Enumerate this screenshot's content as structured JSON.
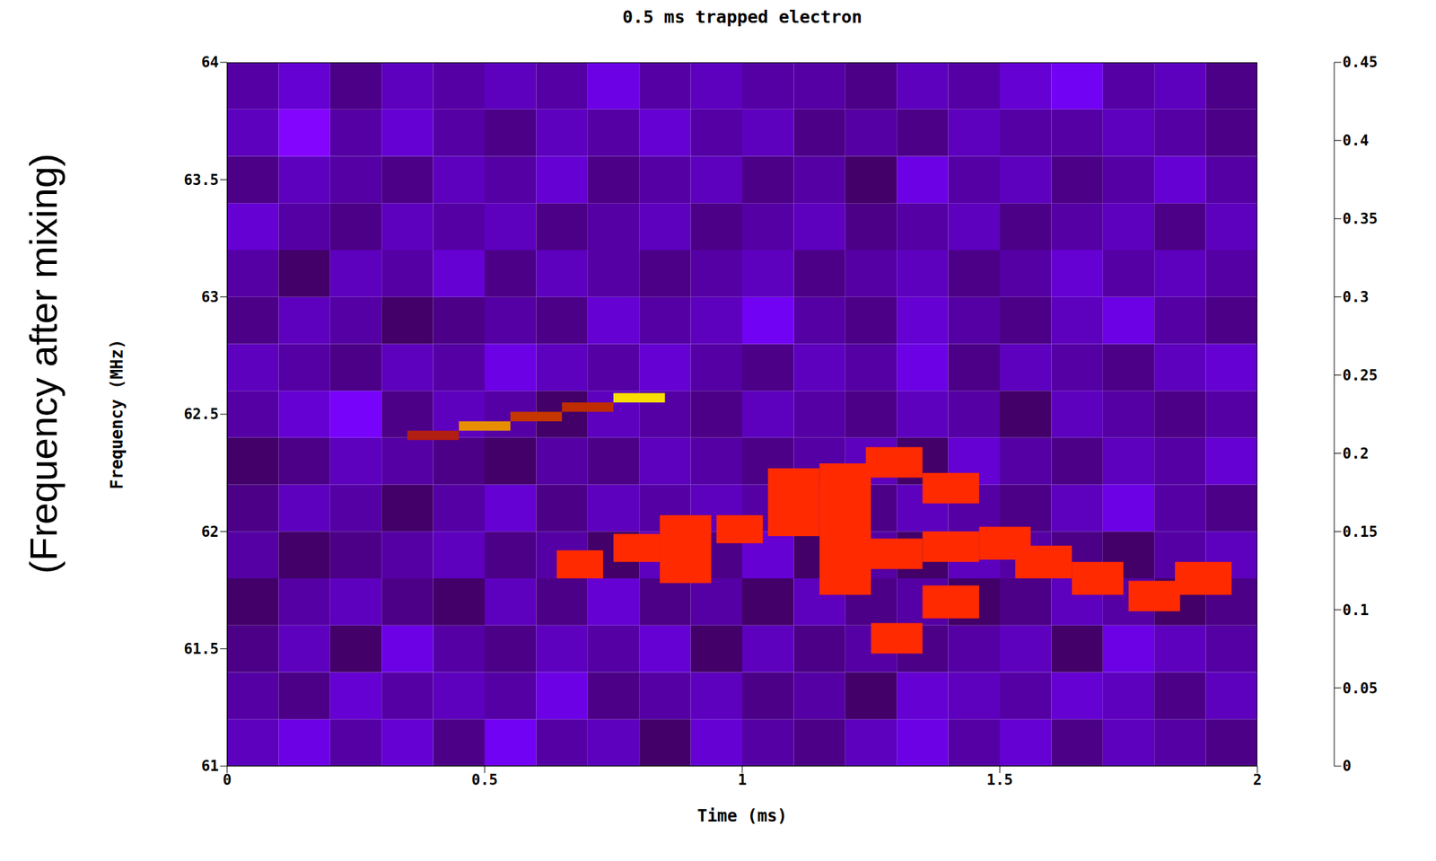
{
  "chart_data": {
    "type": "heatmap",
    "title": "0.5 ms trapped electron",
    "x_label": "Time (ms)",
    "y_label": "Frequency (MHz)",
    "annotation": "(Frequency after mixing)",
    "xlim": [
      0,
      2
    ],
    "ylim": [
      61,
      64
    ],
    "xticks": [
      0,
      0.5,
      1,
      1.5,
      2
    ],
    "yticks": [
      61,
      61.5,
      62,
      62.5,
      63,
      63.5,
      64
    ],
    "x_edges": [
      0,
      0.1,
      0.2,
      0.3,
      0.4,
      0.5,
      0.6,
      0.7,
      0.8,
      0.9,
      1.0,
      1.1,
      1.2,
      1.3,
      1.4,
      1.5,
      1.6,
      1.7,
      1.8,
      1.9,
      2.0
    ],
    "y_edges": [
      61,
      61.2,
      61.4,
      61.6,
      61.8,
      62,
      62.2,
      62.4,
      62.6,
      62.8,
      63,
      63.2,
      63.4,
      63.6,
      63.8,
      64
    ],
    "z": [
      [
        0.06,
        0.08,
        0.05,
        0.07,
        0.04,
        0.09,
        0.05,
        0.06,
        0.03,
        0.07,
        0.05,
        0.04,
        0.06,
        0.08,
        0.05,
        0.07,
        0.04,
        0.06,
        0.05,
        0.04
      ],
      [
        0.05,
        0.04,
        0.07,
        0.05,
        0.06,
        0.05,
        0.08,
        0.04,
        0.05,
        0.06,
        0.04,
        0.05,
        0.03,
        0.07,
        0.06,
        0.05,
        0.07,
        0.06,
        0.04,
        0.06
      ],
      [
        0.04,
        0.06,
        0.03,
        0.08,
        0.05,
        0.04,
        0.06,
        0.05,
        0.07,
        0.03,
        0.06,
        0.04,
        0.05,
        0.04,
        0.05,
        0.06,
        0.03,
        0.08,
        0.06,
        0.05
      ],
      [
        0.03,
        0.05,
        0.06,
        0.04,
        0.03,
        0.06,
        0.04,
        0.07,
        0.04,
        0.05,
        0.03,
        0.06,
        0.04,
        0.05,
        0.03,
        0.04,
        0.06,
        0.05,
        0.03,
        0.04
      ],
      [
        0.05,
        0.03,
        0.04,
        0.05,
        0.06,
        0.04,
        0.05,
        0.03,
        0.06,
        0.04,
        0.07,
        0.03,
        0.05,
        0.03,
        0.06,
        0.05,
        0.04,
        0.03,
        0.05,
        0.06
      ],
      [
        0.04,
        0.06,
        0.05,
        0.03,
        0.05,
        0.07,
        0.04,
        0.06,
        0.05,
        0.06,
        0.05,
        0.08,
        0.04,
        0.06,
        0.05,
        0.04,
        0.06,
        0.08,
        0.05,
        0.04
      ],
      [
        0.03,
        0.04,
        0.06,
        0.05,
        0.04,
        0.03,
        0.05,
        0.04,
        0.06,
        0.05,
        0.04,
        0.05,
        0.06,
        0.03,
        0.07,
        0.05,
        0.04,
        0.06,
        0.05,
        0.07
      ],
      [
        0.05,
        0.07,
        0.1,
        0.04,
        0.06,
        0.05,
        0.03,
        0.06,
        0.05,
        0.04,
        0.06,
        0.05,
        0.04,
        0.06,
        0.05,
        0.03,
        0.06,
        0.05,
        0.04,
        0.05
      ],
      [
        0.06,
        0.05,
        0.04,
        0.06,
        0.05,
        0.08,
        0.06,
        0.05,
        0.07,
        0.05,
        0.04,
        0.06,
        0.05,
        0.08,
        0.04,
        0.06,
        0.05,
        0.04,
        0.06,
        0.07
      ],
      [
        0.04,
        0.06,
        0.05,
        0.03,
        0.04,
        0.05,
        0.04,
        0.07,
        0.05,
        0.06,
        0.09,
        0.05,
        0.04,
        0.07,
        0.05,
        0.04,
        0.06,
        0.08,
        0.05,
        0.04
      ],
      [
        0.05,
        0.03,
        0.06,
        0.05,
        0.07,
        0.04,
        0.06,
        0.05,
        0.04,
        0.05,
        0.06,
        0.04,
        0.05,
        0.06,
        0.04,
        0.05,
        0.07,
        0.05,
        0.06,
        0.05
      ],
      [
        0.07,
        0.05,
        0.04,
        0.06,
        0.05,
        0.06,
        0.04,
        0.05,
        0.06,
        0.04,
        0.05,
        0.06,
        0.04,
        0.05,
        0.06,
        0.04,
        0.05,
        0.06,
        0.04,
        0.06
      ],
      [
        0.04,
        0.06,
        0.05,
        0.04,
        0.06,
        0.05,
        0.07,
        0.04,
        0.05,
        0.06,
        0.04,
        0.05,
        0.03,
        0.08,
        0.05,
        0.06,
        0.04,
        0.05,
        0.07,
        0.05
      ],
      [
        0.06,
        0.12,
        0.05,
        0.07,
        0.05,
        0.04,
        0.06,
        0.05,
        0.07,
        0.05,
        0.06,
        0.04,
        0.05,
        0.04,
        0.06,
        0.05,
        0.05,
        0.06,
        0.05,
        0.04
      ],
      [
        0.05,
        0.07,
        0.04,
        0.06,
        0.05,
        0.06,
        0.05,
        0.08,
        0.05,
        0.06,
        0.05,
        0.05,
        0.04,
        0.06,
        0.05,
        0.07,
        0.09,
        0.05,
        0.06,
        0.04
      ]
    ],
    "cells": [
      {
        "x": [
          0.35,
          0.45
        ],
        "y": [
          62.39,
          62.43
        ],
        "value": 0.22
      },
      {
        "x": [
          0.45,
          0.55
        ],
        "y": [
          62.43,
          62.47
        ],
        "value": 0.37
      },
      {
        "x": [
          0.55,
          0.65
        ],
        "y": [
          62.47,
          62.51
        ],
        "value": 0.27
      },
      {
        "x": [
          0.65,
          0.75
        ],
        "y": [
          62.51,
          62.55
        ],
        "value": 0.25
      },
      {
        "x": [
          0.75,
          0.85
        ],
        "y": [
          62.55,
          62.59
        ],
        "value": 0.43
      }
    ],
    "track": {
      "color": "#ff2a00",
      "cells": [
        {
          "x": [
            0.64,
            0.73
          ],
          "y": [
            61.8,
            61.92
          ]
        },
        {
          "x": [
            0.75,
            0.84
          ],
          "y": [
            61.87,
            61.99
          ]
        },
        {
          "x": [
            0.84,
            0.94
          ],
          "y": [
            61.78,
            62.07
          ]
        },
        {
          "x": [
            0.95,
            1.04
          ],
          "y": [
            61.95,
            62.07
          ]
        },
        {
          "x": [
            1.05,
            1.15
          ],
          "y": [
            61.98,
            62.27
          ]
        },
        {
          "x": [
            1.15,
            1.25
          ],
          "y": [
            61.73,
            62.29
          ]
        },
        {
          "x": [
            1.24,
            1.35
          ],
          "y": [
            62.23,
            62.36
          ]
        },
        {
          "x": [
            1.25,
            1.35
          ],
          "y": [
            61.84,
            61.97
          ]
        },
        {
          "x": [
            1.25,
            1.35
          ],
          "y": [
            61.48,
            61.61
          ]
        },
        {
          "x": [
            1.35,
            1.46
          ],
          "y": [
            62.12,
            62.25
          ]
        },
        {
          "x": [
            1.35,
            1.46
          ],
          "y": [
            61.87,
            62.0
          ]
        },
        {
          "x": [
            1.35,
            1.46
          ],
          "y": [
            61.63,
            61.77
          ]
        },
        {
          "x": [
            1.46,
            1.56
          ],
          "y": [
            61.88,
            62.02
          ]
        },
        {
          "x": [
            1.53,
            1.64
          ],
          "y": [
            61.8,
            61.94
          ]
        },
        {
          "x": [
            1.64,
            1.74
          ],
          "y": [
            61.73,
            61.87
          ]
        },
        {
          "x": [
            1.75,
            1.85
          ],
          "y": [
            61.66,
            61.79
          ]
        },
        {
          "x": [
            1.84,
            1.95
          ],
          "y": [
            61.73,
            61.87
          ]
        }
      ]
    },
    "colorbar": {
      "range": [
        0,
        0.45
      ],
      "ticks": [
        0,
        0.05,
        0.1,
        0.15,
        0.2,
        0.25,
        0.3,
        0.35,
        0.4,
        0.45
      ]
    }
  }
}
